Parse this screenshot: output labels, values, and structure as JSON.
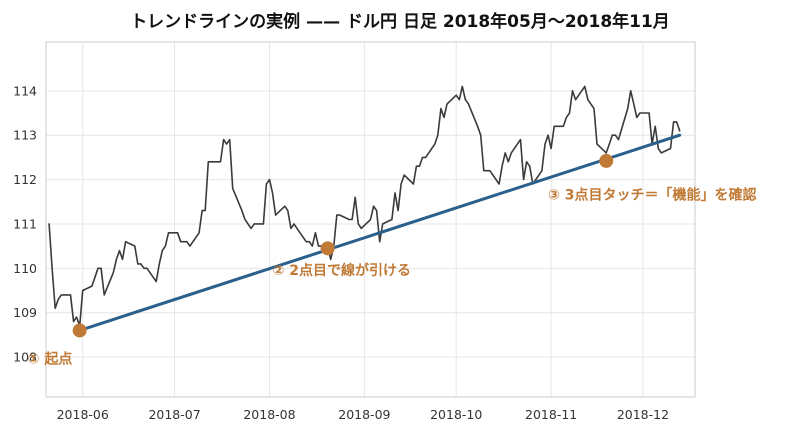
{
  "chart_data": {
    "type": "line",
    "title": "トレンドラインの実例 —— ドル円 日足 2018年05月〜2018年11月",
    "xlabel": "",
    "ylabel": "",
    "x_range": [
      "2018-05-20",
      "2018-12-18"
    ],
    "ylim": [
      107.1,
      115.1
    ],
    "grid": true,
    "y_ticks": [
      108,
      109,
      110,
      111,
      112,
      113,
      114
    ],
    "x_ticks": [
      {
        "date": "2018-06-01",
        "label": "2018-06"
      },
      {
        "date": "2018-07-01",
        "label": "2018-07"
      },
      {
        "date": "2018-08-01",
        "label": "2018-08"
      },
      {
        "date": "2018-09-01",
        "label": "2018-09"
      },
      {
        "date": "2018-10-01",
        "label": "2018-10"
      },
      {
        "date": "2018-11-01",
        "label": "2018-11"
      },
      {
        "date": "2018-12-01",
        "label": "2018-12"
      }
    ],
    "series": [
      {
        "type": "line",
        "color": "#3a3a3a",
        "points": [
          [
            "2018-05-21",
            111.0
          ],
          [
            "2018-05-22",
            110.0
          ],
          [
            "2018-05-23",
            109.1
          ],
          [
            "2018-05-24",
            109.3
          ],
          [
            "2018-05-25",
            109.4
          ],
          [
            "2018-05-28",
            109.4
          ],
          [
            "2018-05-29",
            108.8
          ],
          [
            "2018-05-30",
            108.9
          ],
          [
            "2018-05-31",
            108.7
          ],
          [
            "2018-06-01",
            109.5
          ],
          [
            "2018-06-04",
            109.6
          ],
          [
            "2018-06-05",
            109.8
          ],
          [
            "2018-06-06",
            110.0
          ],
          [
            "2018-06-07",
            110.0
          ],
          [
            "2018-06-08",
            109.4
          ],
          [
            "2018-06-11",
            109.9
          ],
          [
            "2018-06-12",
            110.2
          ],
          [
            "2018-06-13",
            110.4
          ],
          [
            "2018-06-14",
            110.2
          ],
          [
            "2018-06-15",
            110.6
          ],
          [
            "2018-06-18",
            110.5
          ],
          [
            "2018-06-19",
            110.1
          ],
          [
            "2018-06-20",
            110.1
          ],
          [
            "2018-06-21",
            110.0
          ],
          [
            "2018-06-22",
            110.0
          ],
          [
            "2018-06-25",
            109.7
          ],
          [
            "2018-06-26",
            110.1
          ],
          [
            "2018-06-27",
            110.4
          ],
          [
            "2018-06-28",
            110.5
          ],
          [
            "2018-06-29",
            110.8
          ],
          [
            "2018-07-02",
            110.8
          ],
          [
            "2018-07-03",
            110.6
          ],
          [
            "2018-07-04",
            110.6
          ],
          [
            "2018-07-05",
            110.6
          ],
          [
            "2018-07-06",
            110.5
          ],
          [
            "2018-07-09",
            110.8
          ],
          [
            "2018-07-10",
            111.3
          ],
          [
            "2018-07-11",
            111.3
          ],
          [
            "2018-07-12",
            112.4
          ],
          [
            "2018-07-13",
            112.4
          ],
          [
            "2018-07-16",
            112.4
          ],
          [
            "2018-07-17",
            112.9
          ],
          [
            "2018-07-18",
            112.8
          ],
          [
            "2018-07-19",
            112.9
          ],
          [
            "2018-07-20",
            111.8
          ],
          [
            "2018-07-23",
            111.3
          ],
          [
            "2018-07-24",
            111.1
          ],
          [
            "2018-07-25",
            111.0
          ],
          [
            "2018-07-26",
            110.9
          ],
          [
            "2018-07-27",
            111.0
          ],
          [
            "2018-07-30",
            111.0
          ],
          [
            "2018-07-31",
            111.9
          ],
          [
            "2018-08-01",
            112.0
          ],
          [
            "2018-08-02",
            111.7
          ],
          [
            "2018-08-03",
            111.2
          ],
          [
            "2018-08-06",
            111.4
          ],
          [
            "2018-08-07",
            111.3
          ],
          [
            "2018-08-08",
            110.9
          ],
          [
            "2018-08-09",
            111.0
          ],
          [
            "2018-08-10",
            110.9
          ],
          [
            "2018-08-13",
            110.6
          ],
          [
            "2018-08-14",
            110.6
          ],
          [
            "2018-08-15",
            110.5
          ],
          [
            "2018-08-16",
            110.8
          ],
          [
            "2018-08-17",
            110.5
          ],
          [
            "2018-08-20",
            110.5
          ],
          [
            "2018-08-21",
            110.2
          ],
          [
            "2018-08-22",
            110.5
          ],
          [
            "2018-08-23",
            111.2
          ],
          [
            "2018-08-24",
            111.2
          ],
          [
            "2018-08-27",
            111.1
          ],
          [
            "2018-08-28",
            111.1
          ],
          [
            "2018-08-29",
            111.6
          ],
          [
            "2018-08-30",
            111.0
          ],
          [
            "2018-08-31",
            110.9
          ],
          [
            "2018-09-03",
            111.1
          ],
          [
            "2018-09-04",
            111.4
          ],
          [
            "2018-09-05",
            111.3
          ],
          [
            "2018-09-06",
            110.6
          ],
          [
            "2018-09-07",
            111.0
          ],
          [
            "2018-09-10",
            111.1
          ],
          [
            "2018-09-11",
            111.7
          ],
          [
            "2018-09-12",
            111.3
          ],
          [
            "2018-09-13",
            111.9
          ],
          [
            "2018-09-14",
            112.1
          ],
          [
            "2018-09-17",
            111.9
          ],
          [
            "2018-09-18",
            112.3
          ],
          [
            "2018-09-19",
            112.3
          ],
          [
            "2018-09-20",
            112.5
          ],
          [
            "2018-09-21",
            112.5
          ],
          [
            "2018-09-24",
            112.8
          ],
          [
            "2018-09-25",
            113.0
          ],
          [
            "2018-09-26",
            113.6
          ],
          [
            "2018-09-27",
            113.4
          ],
          [
            "2018-09-28",
            113.7
          ],
          [
            "2018-10-01",
            113.9
          ],
          [
            "2018-10-02",
            113.8
          ],
          [
            "2018-10-03",
            114.1
          ],
          [
            "2018-10-04",
            113.8
          ],
          [
            "2018-10-05",
            113.7
          ],
          [
            "2018-10-08",
            113.2
          ],
          [
            "2018-10-09",
            113.0
          ],
          [
            "2018-10-10",
            112.2
          ],
          [
            "2018-10-11",
            112.2
          ],
          [
            "2018-10-12",
            112.2
          ],
          [
            "2018-10-15",
            111.9
          ],
          [
            "2018-10-16",
            112.3
          ],
          [
            "2018-10-17",
            112.6
          ],
          [
            "2018-10-18",
            112.4
          ],
          [
            "2018-10-19",
            112.6
          ],
          [
            "2018-10-22",
            112.9
          ],
          [
            "2018-10-23",
            112.0
          ],
          [
            "2018-10-24",
            112.4
          ],
          [
            "2018-10-25",
            112.3
          ],
          [
            "2018-10-26",
            111.9
          ],
          [
            "2018-10-29",
            112.2
          ],
          [
            "2018-10-30",
            112.8
          ],
          [
            "2018-10-31",
            113.0
          ],
          [
            "2018-11-01",
            112.7
          ],
          [
            "2018-11-02",
            113.2
          ],
          [
            "2018-11-05",
            113.2
          ],
          [
            "2018-11-06",
            113.4
          ],
          [
            "2018-11-07",
            113.5
          ],
          [
            "2018-11-08",
            114.0
          ],
          [
            "2018-11-09",
            113.8
          ],
          [
            "2018-11-12",
            114.1
          ],
          [
            "2018-11-13",
            113.8
          ],
          [
            "2018-11-14",
            113.7
          ],
          [
            "2018-11-15",
            113.6
          ],
          [
            "2018-11-16",
            112.8
          ],
          [
            "2018-11-19",
            112.6
          ],
          [
            "2018-11-20",
            112.8
          ],
          [
            "2018-11-21",
            113.0
          ],
          [
            "2018-11-22",
            113.0
          ],
          [
            "2018-11-23",
            112.9
          ],
          [
            "2018-11-26",
            113.6
          ],
          [
            "2018-11-27",
            114.0
          ],
          [
            "2018-11-28",
            113.7
          ],
          [
            "2018-11-29",
            113.4
          ],
          [
            "2018-11-30",
            113.5
          ],
          [
            "2018-12-03",
            113.5
          ],
          [
            "2018-12-04",
            112.8
          ],
          [
            "2018-12-05",
            113.2
          ],
          [
            "2018-12-06",
            112.7
          ],
          [
            "2018-12-07",
            112.6
          ],
          [
            "2018-12-10",
            112.7
          ],
          [
            "2018-12-11",
            113.3
          ],
          [
            "2018-12-12",
            113.3
          ],
          [
            "2018-12-13",
            113.1
          ]
        ]
      },
      {
        "type": "line",
        "color": "#2b5f8c",
        "points": [
          [
            "2018-05-31",
            108.6
          ],
          [
            "2018-12-13",
            113.0
          ]
        ]
      }
    ],
    "touch_points": [
      {
        "date": "2018-05-31",
        "value": 108.6,
        "color": "#c07a35"
      },
      {
        "date": "2018-08-20",
        "value": 110.45,
        "color": "#c07a35"
      },
      {
        "date": "2018-11-19",
        "value": 112.42,
        "color": "#c07a35"
      }
    ],
    "annotations": [
      {
        "text": "① 起点",
        "date": "2018-05-14",
        "value": 107.85
      },
      {
        "text": "② 2点目で線が引ける",
        "date": "2018-08-02",
        "value": 109.85
      },
      {
        "text": "③ 3点目タッチ＝「機能」を確認",
        "date": "2018-10-31",
        "value": 111.55
      }
    ]
  }
}
